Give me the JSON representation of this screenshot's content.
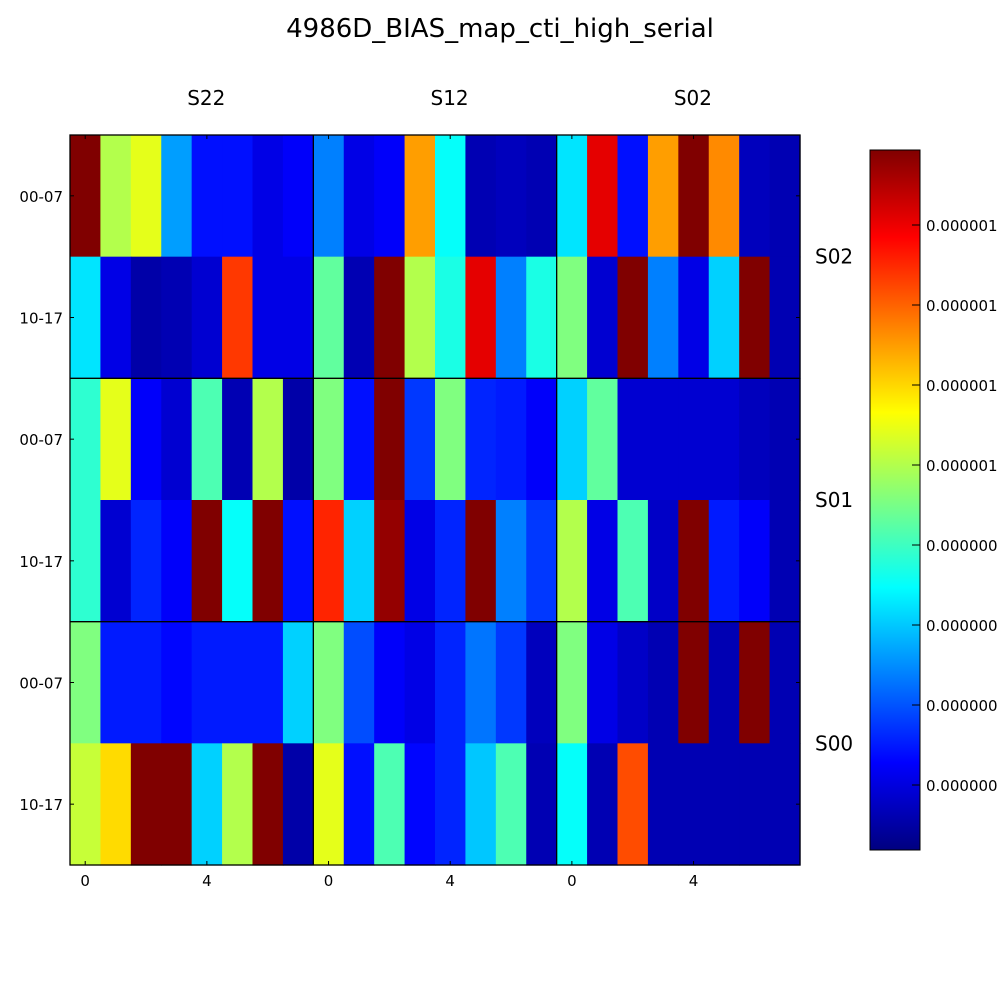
{
  "chart_data": {
    "type": "heatmap",
    "title": "4986D_BIAS_map_cti_high_serial",
    "colormap": "jet",
    "column_groups": [
      "S22",
      "S12",
      "S02"
    ],
    "row_groups": [
      "S02",
      "S01",
      "S00"
    ],
    "row_tick_labels": [
      "00-07",
      "10-17"
    ],
    "x_tick_labels": [
      "0",
      "4"
    ],
    "colorbar_tick_labels": [
      "0.000000",
      "0.000000",
      "0.000000",
      "0.000000",
      "0.000001",
      "0.000001",
      "0.000001",
      "0.000001"
    ],
    "value_range": [
      0,
      1
    ],
    "values": [
      [
        1.0,
        0.55,
        0.6,
        0.28,
        0.14,
        0.14,
        0.1,
        0.12,
        0.25,
        0.1,
        0.12,
        0.72,
        0.38,
        0.05,
        0.06,
        0.05,
        0.35,
        0.9,
        0.14,
        0.72,
        1.0,
        0.74,
        0.06,
        0.05
      ],
      [
        0.35,
        0.1,
        0.04,
        0.05,
        0.08,
        0.82,
        0.1,
        0.1,
        0.47,
        0.05,
        1.0,
        0.55,
        0.4,
        0.9,
        0.25,
        0.4,
        0.5,
        0.08,
        1.0,
        0.25,
        0.1,
        0.33,
        1.0,
        0.05
      ],
      [
        0.42,
        0.6,
        0.12,
        0.08,
        0.45,
        0.05,
        0.55,
        0.04,
        0.5,
        0.14,
        1.0,
        0.18,
        0.5,
        0.16,
        0.15,
        0.12,
        0.33,
        0.47,
        0.08,
        0.08,
        0.08,
        0.08,
        0.06,
        0.05
      ],
      [
        0.42,
        0.08,
        0.16,
        0.12,
        1.0,
        0.38,
        1.0,
        0.14,
        0.84,
        0.33,
        0.98,
        0.1,
        0.16,
        1.0,
        0.25,
        0.18,
        0.55,
        0.1,
        0.45,
        0.07,
        1.0,
        0.15,
        0.12,
        0.05
      ],
      [
        0.5,
        0.15,
        0.15,
        0.13,
        0.15,
        0.15,
        0.15,
        0.33,
        0.5,
        0.2,
        0.12,
        0.1,
        0.16,
        0.24,
        0.18,
        0.06,
        0.5,
        0.1,
        0.07,
        0.05,
        1.0,
        0.05,
        1.0,
        0.05
      ],
      [
        0.57,
        0.66,
        1.0,
        1.0,
        0.33,
        0.55,
        1.0,
        0.04,
        0.6,
        0.14,
        0.45,
        0.13,
        0.16,
        0.32,
        0.45,
        0.05,
        0.38,
        0.05,
        0.8,
        0.05,
        0.05,
        0.05,
        0.05,
        0.05
      ]
    ]
  }
}
